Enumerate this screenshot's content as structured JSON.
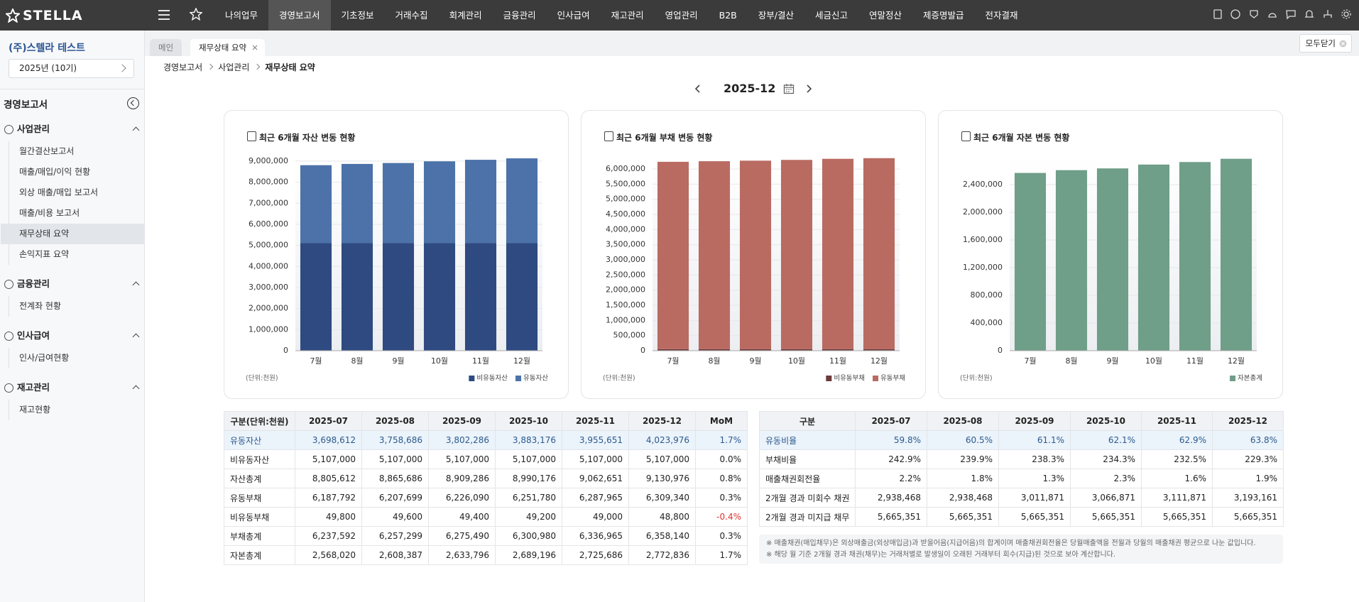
{
  "header": {
    "logo": "STELLA",
    "menu": [
      "나의업무",
      "경영보고서",
      "기초정보",
      "거래수집",
      "회계관리",
      "금융관리",
      "인사급여",
      "재고관리",
      "영업관리",
      "B2B",
      "장부/결산",
      "세금신고",
      "연말정산",
      "제증명발급",
      "전자결재"
    ],
    "active_menu": 1
  },
  "sidebar": {
    "company": "(주)스텔라 테스트",
    "period": "2025년 (10기)",
    "section": "경영보고서",
    "groups": [
      {
        "title": "사업관리",
        "items": [
          "월간결산보고서",
          "매출/매입/이익 현황",
          "외상 매출/매입 보고서",
          "매출/비용 보고서",
          "재무상태 요약",
          "손익지표 요약"
        ]
      },
      {
        "title": "금융관리",
        "items": [
          "전계좌 현황"
        ]
      },
      {
        "title": "인사급여",
        "items": [
          "인사/급여현황"
        ]
      },
      {
        "title": "재고관리",
        "items": [
          "재고현황"
        ]
      }
    ]
  },
  "tabs": [
    "메인",
    "재무상태 요약"
  ],
  "close_all": "모두닫기",
  "breadcrumb": [
    "경영보고서",
    "사업관리",
    "재무상태 요약"
  ],
  "period": "2025-12",
  "chart_data": [
    {
      "type": "bar",
      "stacked": true,
      "title": "최근 6개월 자산 변동 현황",
      "unit_note": "(단위:천원)",
      "categories": [
        "7월",
        "8월",
        "9월",
        "10월",
        "11월",
        "12월"
      ],
      "series": [
        {
          "name": "비유동자산",
          "color": "#2e4a80",
          "values": [
            5107000,
            5107000,
            5107000,
            5107000,
            5107000,
            5107000
          ]
        },
        {
          "name": "유동자산",
          "color": "#4c72a9",
          "values": [
            3698612,
            3758686,
            3802286,
            3883176,
            3955651,
            4023976
          ]
        }
      ],
      "ylim": [
        0,
        9200000
      ],
      "yticks": [
        0,
        {
          "value": 1000000,
          "label": "1,000,000"
        },
        {
          "value": 2000000,
          "label": "2,000,000"
        },
        {
          "value": 3000000,
          "label": "3,000,000"
        },
        {
          "value": 4000000,
          "label": "4,000,000"
        },
        {
          "value": 5000000,
          "label": "5,000,000"
        },
        {
          "value": 6000000,
          "label": "6,000,000"
        },
        {
          "value": 7000000,
          "label": "7,000,000"
        },
        {
          "value": 8000000,
          "label": "8,000,000"
        },
        {
          "value": 9000000,
          "label": "9,000,000"
        }
      ],
      "grid": true
    },
    {
      "type": "bar",
      "stacked": true,
      "title": "최근 6개월 부채 변동 현황",
      "unit_note": "(단위:천원)",
      "categories": [
        "7월",
        "8월",
        "9월",
        "10월",
        "11월",
        "12월"
      ],
      "series": [
        {
          "name": "비유동부채",
          "color": "#6b3b3b",
          "values": [
            49800,
            49600,
            49400,
            49200,
            49000,
            48800
          ]
        },
        {
          "name": "유동부채",
          "color": "#b96b62",
          "values": [
            6187792,
            6207699,
            6226090,
            6251780,
            6287965,
            6309340
          ]
        }
      ],
      "ylim": [
        0,
        6400000
      ],
      "yticks": [
        0,
        {
          "value": 500000,
          "label": "500,000"
        },
        {
          "value": 1000000,
          "label": "1,000,000"
        },
        {
          "value": 1500000,
          "label": "1,500,000"
        },
        {
          "value": 2000000,
          "label": "2,000,000"
        },
        {
          "value": 2500000,
          "label": "2,500,000"
        },
        {
          "value": 3000000,
          "label": "3,000,000"
        },
        {
          "value": 3500000,
          "label": "3,500,000"
        },
        {
          "value": 4000000,
          "label": "4,000,000"
        },
        {
          "value": 4500000,
          "label": "4,500,000"
        },
        {
          "value": 5000000,
          "label": "5,000,000"
        },
        {
          "value": 5500000,
          "label": "5,500,000"
        },
        {
          "value": 6000000,
          "label": "6,000,000"
        }
      ],
      "grid": true
    },
    {
      "type": "bar",
      "stacked": true,
      "title": "최근 6개월 자본 변동 현황",
      "unit_note": "(단위:천원)",
      "categories": [
        "7월",
        "8월",
        "9월",
        "10월",
        "11월",
        "12월"
      ],
      "series": [
        {
          "name": "자본총계",
          "color": "#6f9e89",
          "values": [
            2568020,
            2608387,
            2633796,
            2689196,
            2725686,
            2772836
          ]
        }
      ],
      "ylim": [
        0,
        2800000
      ],
      "yticks": [
        0,
        {
          "value": 400000,
          "label": "400,000"
        },
        {
          "value": 800000,
          "label": "800,000"
        },
        {
          "value": 1200000,
          "label": "1,200,000"
        },
        {
          "value": 1600000,
          "label": "1,600,000"
        },
        {
          "value": 2000000,
          "label": "2,000,000"
        },
        {
          "value": 2400000,
          "label": "2,400,000"
        }
      ],
      "grid": true
    }
  ],
  "table1": {
    "header": [
      "구분(단위:천원)",
      "2025-07",
      "2025-08",
      "2025-09",
      "2025-10",
      "2025-11",
      "2025-12",
      "MoM"
    ],
    "rows": [
      [
        "유동자산",
        "3,698,612",
        "3,758,686",
        "3,802,286",
        "3,883,176",
        "3,955,651",
        "4,023,976",
        "1.7%"
      ],
      [
        "비유동자산",
        "5,107,000",
        "5,107,000",
        "5,107,000",
        "5,107,000",
        "5,107,000",
        "5,107,000",
        "0.0%"
      ],
      [
        "자산총계",
        "8,805,612",
        "8,865,686",
        "8,909,286",
        "8,990,176",
        "9,062,651",
        "9,130,976",
        "0.8%"
      ],
      [
        "유동부채",
        "6,187,792",
        "6,207,699",
        "6,226,090",
        "6,251,780",
        "6,287,965",
        "6,309,340",
        "0.3%"
      ],
      [
        "비유동부채",
        "49,800",
        "49,600",
        "49,400",
        "49,200",
        "49,000",
        "48,800",
        "-0.4%"
      ],
      [
        "부채총계",
        "6,237,592",
        "6,257,299",
        "6,275,490",
        "6,300,980",
        "6,336,965",
        "6,358,140",
        "0.3%"
      ],
      [
        "자본총계",
        "2,568,020",
        "2,608,387",
        "2,633,796",
        "2,689,196",
        "2,725,686",
        "2,772,836",
        "1.7%"
      ]
    ]
  },
  "table2": {
    "header": [
      "구분",
      "2025-07",
      "2025-08",
      "2025-09",
      "2025-10",
      "2025-11",
      "2025-12"
    ],
    "rows": [
      [
        "유동비율",
        "59.8%",
        "60.5%",
        "61.1%",
        "62.1%",
        "62.9%",
        "63.8%"
      ],
      [
        "부채비율",
        "242.9%",
        "239.9%",
        "238.3%",
        "234.3%",
        "232.5%",
        "229.3%"
      ],
      [
        "매출채권회전율",
        "2.2%",
        "1.8%",
        "1.3%",
        "2.3%",
        "1.6%",
        "1.9%"
      ],
      [
        "2개월 경과 미회수 채권",
        "2,938,468",
        "2,938,468",
        "3,011,871",
        "3,066,871",
        "3,111,871",
        "3,193,161"
      ],
      [
        "2개월 경과 미지급 채무",
        "5,665,351",
        "5,665,351",
        "5,665,351",
        "5,665,351",
        "5,665,351",
        "5,665,351"
      ]
    ]
  },
  "notes": [
    "※ 매출채권(매입채무)은 외상매출금(외상매입금)과 받을어음(지급어음)의 합계이며 매출채권회전율은 당월매출액을 전월과 당월의 매출채권 평균으로 나눈 값입니다.",
    "※ 해당 월 기준 2개월 경과 채권(채무)는 거래처별로 발생일이 오래된 거래부터 회수(지급)된 것으로 보아 계산합니다."
  ]
}
